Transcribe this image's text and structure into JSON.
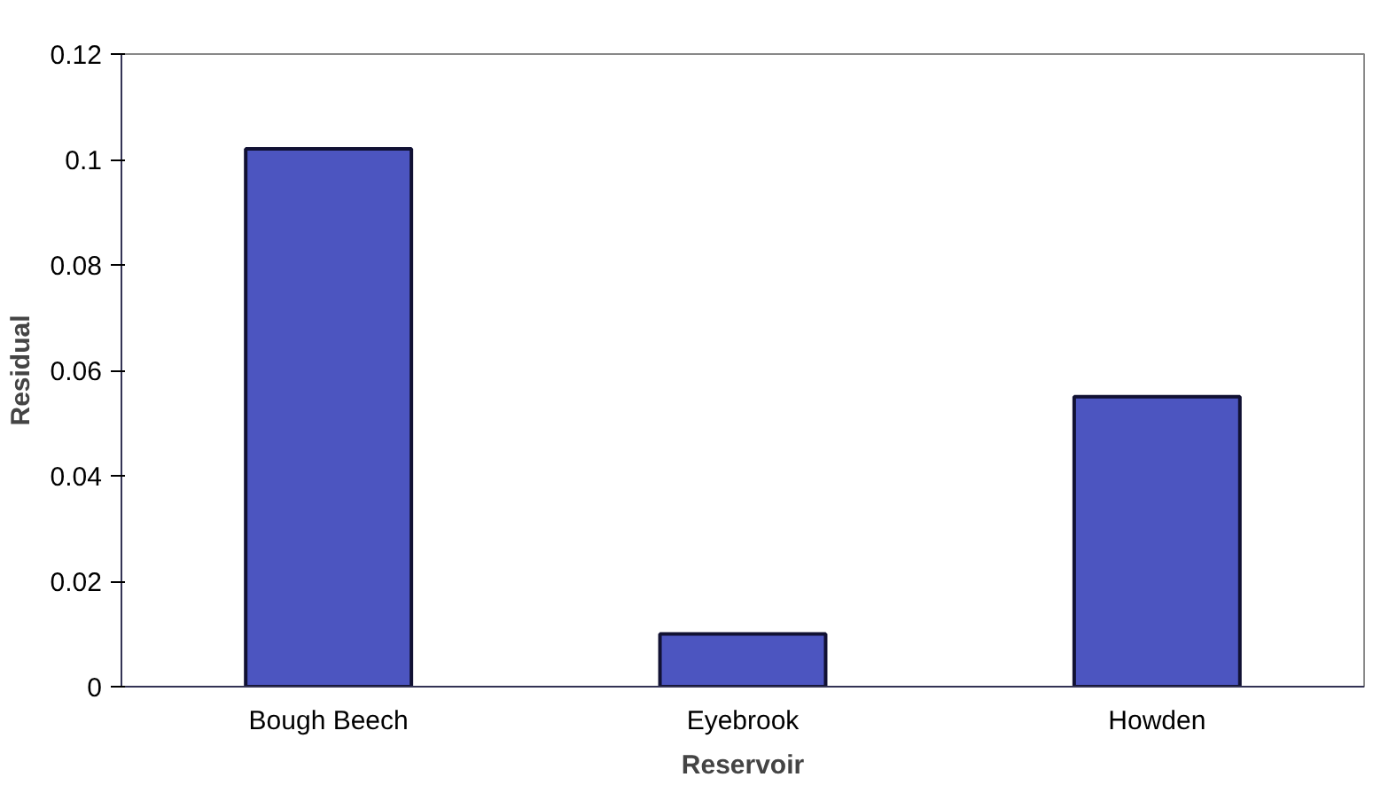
{
  "chart_data": {
    "type": "bar",
    "xlabel": "Reservoir",
    "ylabel": "Residual",
    "categories": [
      "Bough Beech",
      "Eyebrook",
      "Howden"
    ],
    "values": [
      0.102,
      0.01,
      0.055
    ],
    "color": "#4c55c0",
    "ylim": [
      0,
      0.12
    ],
    "yticks": [
      0,
      0.02,
      0.04,
      0.06,
      0.08,
      0.1,
      0.12
    ],
    "grid": false
  }
}
